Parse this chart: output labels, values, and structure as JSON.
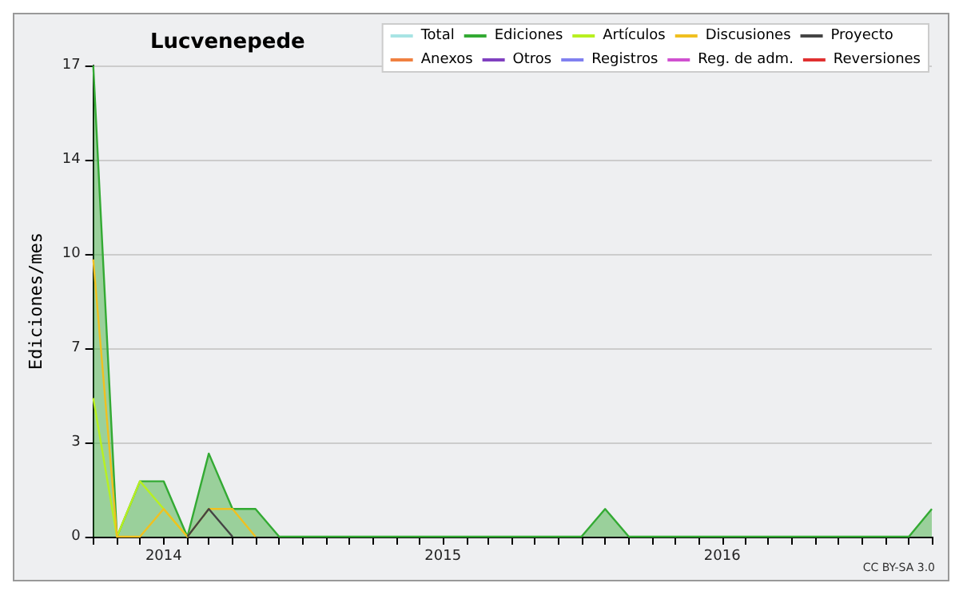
{
  "chart_data": {
    "type": "line",
    "title": "Lucvenepede",
    "ylabel": "Ediciones/mes",
    "annotations": [
      "CC BY-SA 3.0"
    ],
    "x": [
      "2013-10",
      "2013-11",
      "2013-12",
      "2014-01",
      "2014-02",
      "2014-03",
      "2014-04",
      "2014-05",
      "2014-06",
      "2014-07",
      "2014-08",
      "2014-09",
      "2014-10",
      "2014-11",
      "2014-12",
      "2015-01",
      "2015-02",
      "2015-03",
      "2015-04",
      "2015-05",
      "2015-06",
      "2015-07",
      "2015-08",
      "2015-09",
      "2015-10",
      "2015-11",
      "2015-12",
      "2016-01",
      "2016-02",
      "2016-03",
      "2016-04",
      "2016-05",
      "2016-06",
      "2016-07",
      "2016-08",
      "2016-09",
      "2016-10"
    ],
    "series": [
      {
        "name": "Total",
        "color": "#a8e4e4",
        "values": [
          null,
          null,
          null,
          null,
          null,
          null,
          null,
          null,
          null,
          null,
          null,
          null,
          null,
          null,
          null,
          null,
          null,
          null,
          null,
          null,
          null,
          null,
          null,
          null,
          null,
          null,
          null,
          null,
          null,
          null,
          null,
          null,
          null,
          null,
          null,
          null,
          null
        ]
      },
      {
        "name": "Ediciones",
        "type": "area",
        "color": "#33aa33",
        "values": [
          17,
          0,
          2,
          2,
          0,
          3,
          1,
          1,
          0,
          0,
          0,
          0,
          0,
          0,
          0,
          0,
          0,
          0,
          0,
          0,
          0,
          0,
          1,
          0,
          0,
          0,
          0,
          0,
          0,
          0,
          0,
          0,
          0,
          0,
          0,
          0,
          1
        ]
      },
      {
        "name": "Artículos",
        "color": "#b8f020",
        "values": [
          5,
          0,
          2,
          1,
          0,
          null,
          null,
          null,
          null,
          null,
          null,
          null,
          null,
          null,
          null,
          null,
          null,
          null,
          null,
          null,
          null,
          null,
          null,
          null,
          null,
          null,
          null,
          null,
          null,
          null,
          null,
          null,
          null,
          null,
          null,
          null,
          null
        ]
      },
      {
        "name": "Discusiones",
        "color": "#f0c020",
        "values": [
          10,
          0,
          0,
          1,
          0,
          1,
          1,
          0,
          null,
          null,
          null,
          null,
          null,
          null,
          null,
          null,
          null,
          null,
          null,
          null,
          null,
          null,
          null,
          null,
          null,
          null,
          null,
          null,
          null,
          null,
          null,
          null,
          null,
          null,
          null,
          null,
          null
        ]
      },
      {
        "name": "Proyecto",
        "color": "#444444",
        "values": [
          null,
          null,
          null,
          null,
          0,
          1,
          0,
          null,
          null,
          null,
          null,
          null,
          null,
          null,
          null,
          null,
          null,
          null,
          null,
          null,
          null,
          null,
          null,
          null,
          null,
          null,
          null,
          null,
          null,
          null,
          null,
          null,
          null,
          null,
          null,
          null,
          null
        ]
      },
      {
        "name": "Anexos",
        "color": "#f08040",
        "values": [
          null,
          null,
          null,
          null,
          null,
          null,
          null,
          null,
          null,
          null,
          null,
          null,
          null,
          null,
          null,
          null,
          null,
          null,
          null,
          null,
          null,
          null,
          null,
          null,
          null,
          null,
          null,
          null,
          null,
          null,
          null,
          null,
          null,
          null,
          null,
          null,
          null
        ]
      },
      {
        "name": "Otros",
        "color": "#8040c0",
        "values": [
          null,
          null,
          null,
          null,
          null,
          null,
          null,
          null,
          null,
          null,
          null,
          null,
          null,
          null,
          null,
          null,
          null,
          null,
          null,
          null,
          null,
          null,
          null,
          null,
          null,
          null,
          null,
          null,
          null,
          null,
          null,
          null,
          null,
          null,
          null,
          null,
          null
        ]
      },
      {
        "name": "Registros",
        "color": "#8080f0",
        "values": [
          null,
          null,
          null,
          null,
          null,
          null,
          null,
          null,
          null,
          null,
          null,
          null,
          null,
          null,
          null,
          null,
          null,
          null,
          null,
          null,
          null,
          null,
          null,
          null,
          null,
          null,
          null,
          null,
          null,
          null,
          null,
          null,
          null,
          null,
          null,
          null,
          null
        ]
      },
      {
        "name": "Reg. de adm.",
        "color": "#d050d0",
        "values": [
          null,
          null,
          null,
          null,
          null,
          null,
          null,
          null,
          null,
          null,
          null,
          null,
          null,
          null,
          null,
          null,
          null,
          null,
          null,
          null,
          null,
          null,
          null,
          null,
          null,
          null,
          null,
          null,
          null,
          null,
          null,
          null,
          null,
          null,
          null,
          null,
          null
        ]
      },
      {
        "name": "Reversiones",
        "color": "#e03030",
        "values": [
          null,
          null,
          null,
          null,
          null,
          null,
          null,
          null,
          null,
          null,
          null,
          null,
          null,
          null,
          null,
          null,
          null,
          null,
          null,
          null,
          null,
          null,
          null,
          null,
          null,
          null,
          null,
          null,
          null,
          null,
          null,
          null,
          null,
          null,
          null,
          null,
          null
        ]
      }
    ],
    "xlim": [
      "2013-10",
      "2016-10"
    ],
    "xticks": [
      {
        "value": "2013-10",
        "label": null
      },
      {
        "value": "2013-11",
        "label": null
      },
      {
        "value": "2013-12",
        "label": null
      },
      {
        "value": "2014-01",
        "label": "2014"
      },
      {
        "value": "2014-02",
        "label": null
      },
      {
        "value": "2014-03",
        "label": null
      },
      {
        "value": "2014-04",
        "label": null
      },
      {
        "value": "2014-05",
        "label": null
      },
      {
        "value": "2014-06",
        "label": null
      },
      {
        "value": "2014-07",
        "label": null
      },
      {
        "value": "2014-08",
        "label": null
      },
      {
        "value": "2014-09",
        "label": null
      },
      {
        "value": "2014-10",
        "label": null
      },
      {
        "value": "2014-11",
        "label": null
      },
      {
        "value": "2014-12",
        "label": null
      },
      {
        "value": "2015-01",
        "label": "2015"
      },
      {
        "value": "2015-02",
        "label": null
      },
      {
        "value": "2015-03",
        "label": null
      },
      {
        "value": "2015-04",
        "label": null
      },
      {
        "value": "2015-05",
        "label": null
      },
      {
        "value": "2015-06",
        "label": null
      },
      {
        "value": "2015-07",
        "label": null
      },
      {
        "value": "2015-08",
        "label": null
      },
      {
        "value": "2015-09",
        "label": null
      },
      {
        "value": "2015-10",
        "label": null
      },
      {
        "value": "2015-11",
        "label": null
      },
      {
        "value": "2015-12",
        "label": null
      },
      {
        "value": "2016-01",
        "label": "2016"
      },
      {
        "value": "2016-02",
        "label": null
      },
      {
        "value": "2016-03",
        "label": null
      },
      {
        "value": "2016-04",
        "label": null
      },
      {
        "value": "2016-05",
        "label": null
      },
      {
        "value": "2016-06",
        "label": null
      },
      {
        "value": "2016-07",
        "label": null
      },
      {
        "value": "2016-08",
        "label": null
      },
      {
        "value": "2016-09",
        "label": null
      },
      {
        "value": "2016-10",
        "label": null
      }
    ],
    "ylim": [
      0,
      17
    ],
    "yticks": [
      0,
      {
        "value": 3.4,
        "label": "3"
      },
      {
        "value": 6.8,
        "label": "7"
      },
      {
        "value": 10.2,
        "label": "10"
      },
      {
        "value": 13.6,
        "label": "14"
      },
      17
    ],
    "grid": "y",
    "legend": "top right",
    "marker": "none",
    "line_style": "solid"
  }
}
